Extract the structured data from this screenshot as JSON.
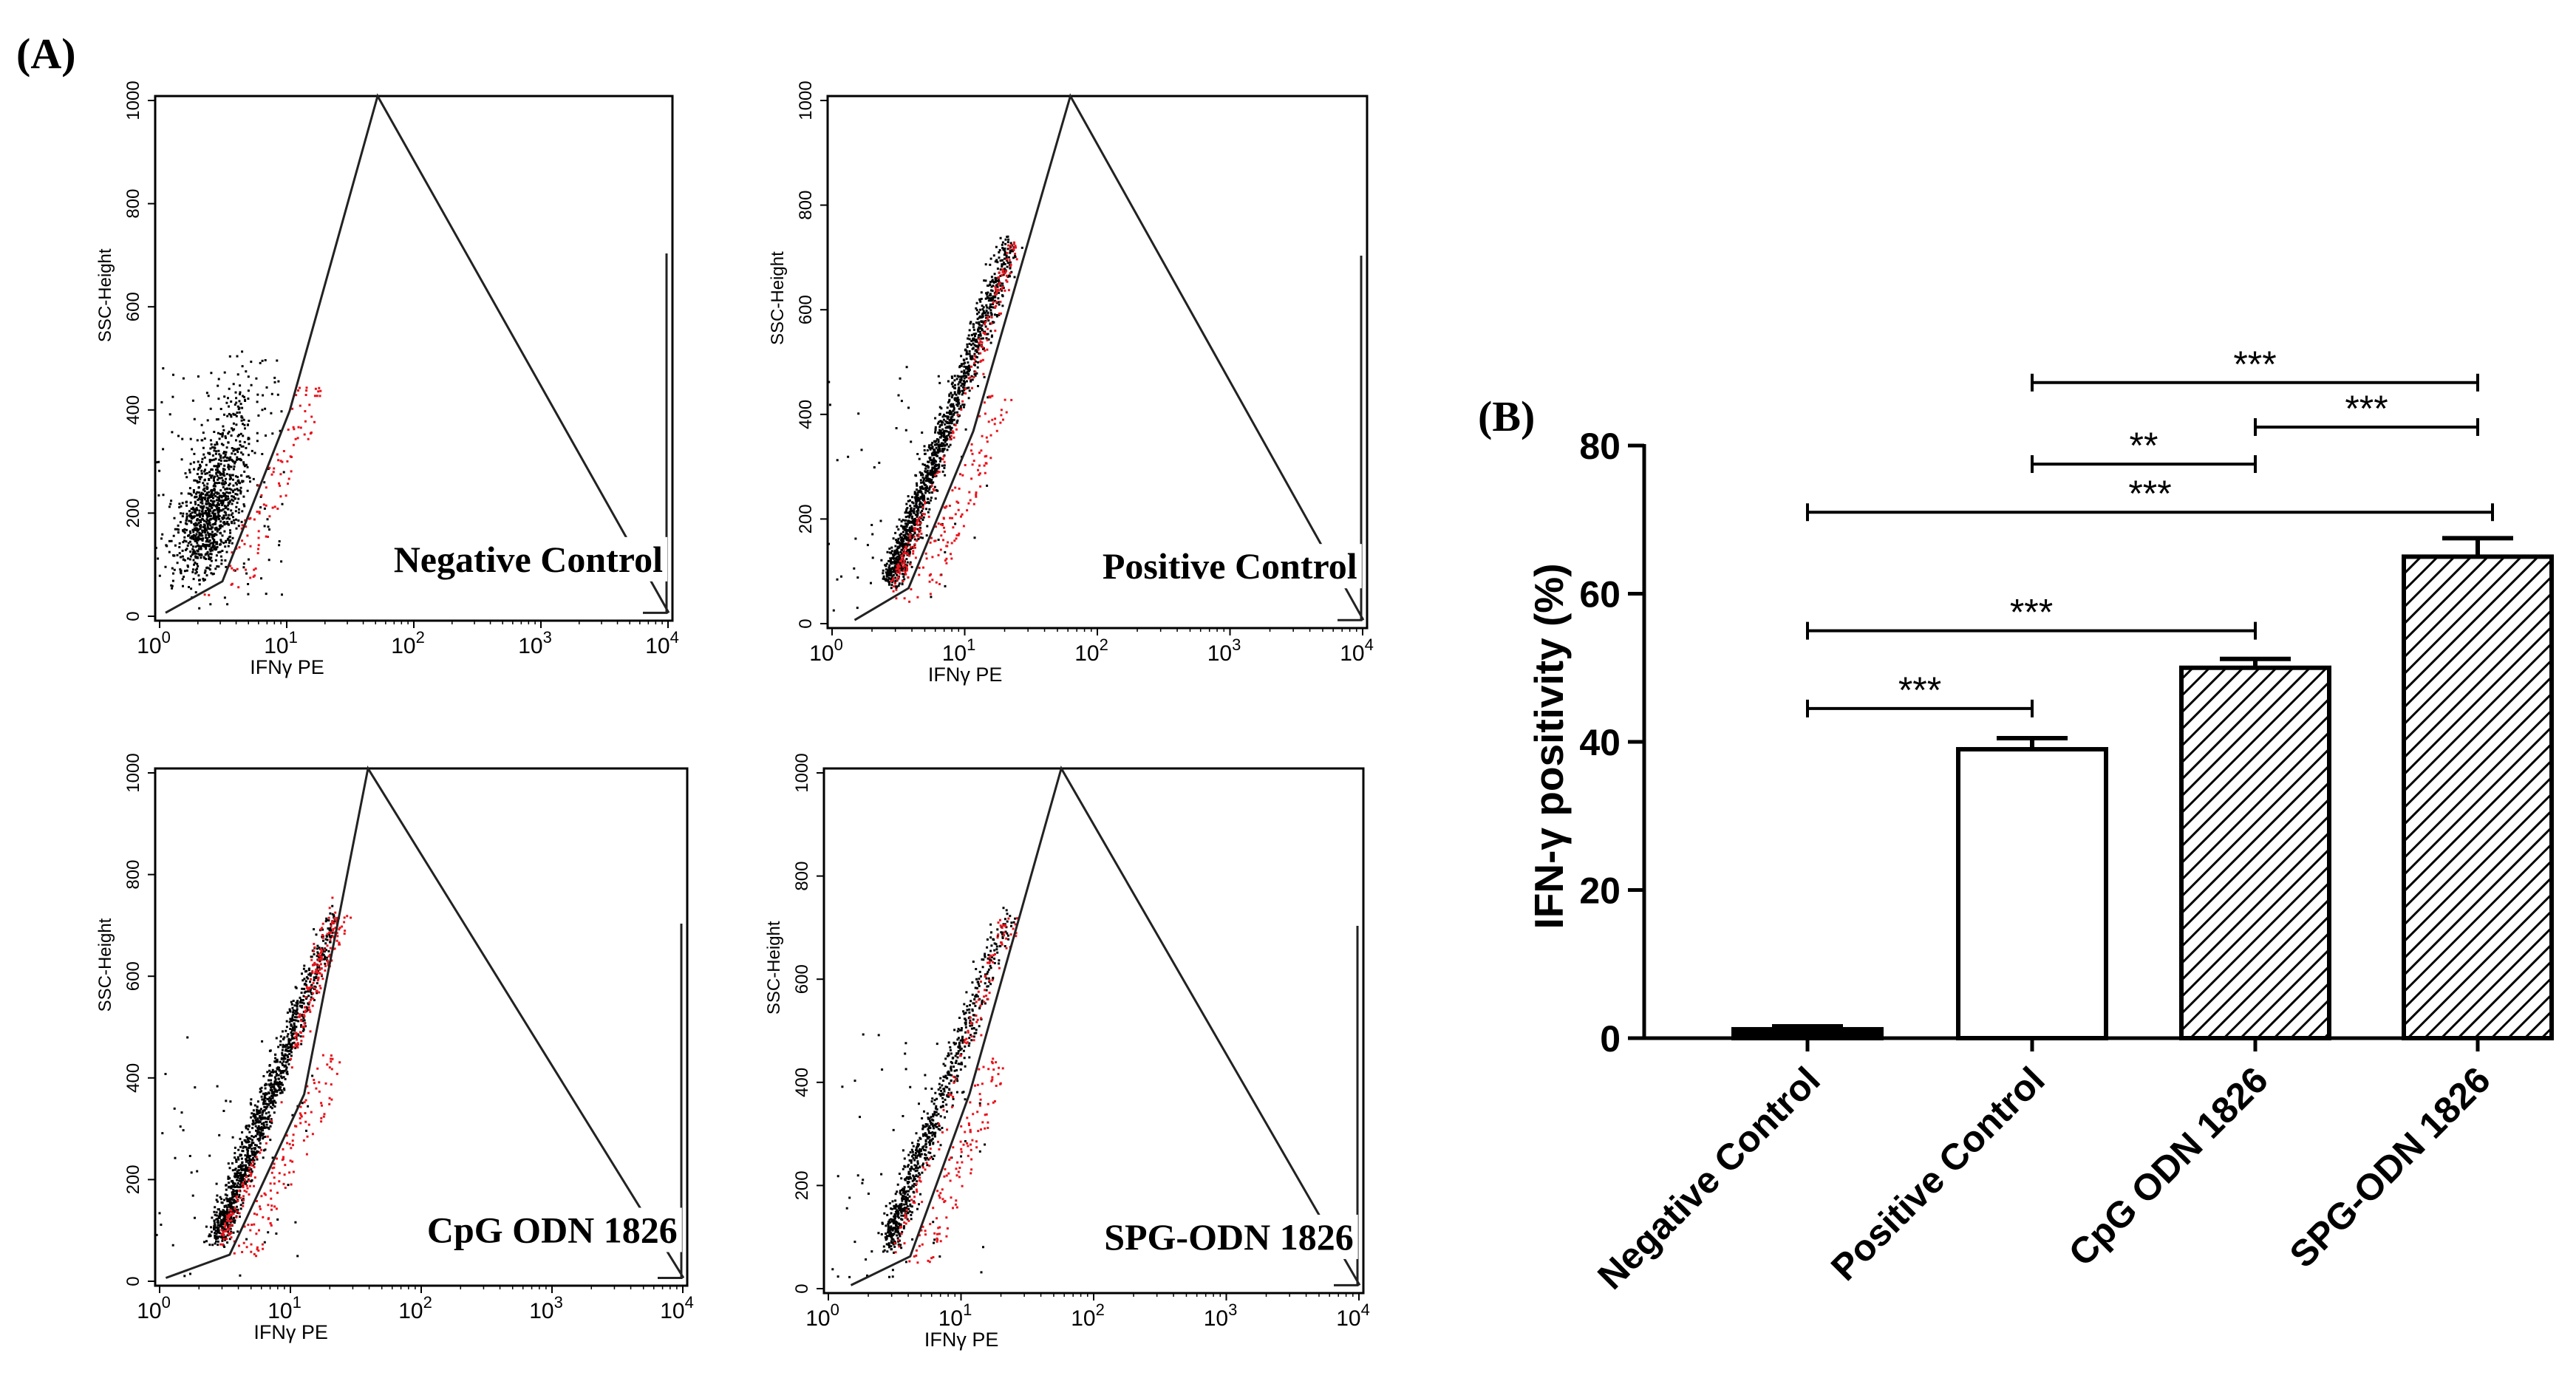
{
  "panel_labels": {
    "a": "(A)",
    "b": "(B)"
  },
  "flow_plots": {
    "ylabel": "SSC-Height",
    "xlabel": "IFNγ PE",
    "y_ticks": [
      "0",
      "200",
      "400",
      "600",
      "800",
      "1000"
    ],
    "x_base": "10",
    "x_exponents": [
      "0",
      "1",
      "2",
      "3",
      "4"
    ],
    "panels": [
      {
        "label": "Negative Control"
      },
      {
        "label": "Positive Control"
      },
      {
        "label": "CpG ODN 1826"
      },
      {
        "label": "SPG-ODN 1826"
      }
    ],
    "colors": {
      "gated_out": "#000000",
      "positive": "#e8141c"
    }
  },
  "chart_data": {
    "type": "bar",
    "categories": [
      "Negative Control",
      "Positive Control",
      "CpG ODN 1826",
      "SPG-ODN 1826"
    ],
    "values": [
      1.2,
      39,
      50,
      65
    ],
    "errors": [
      0.4,
      1.5,
      1.2,
      2.5
    ],
    "fills": [
      "solid",
      "white",
      "hatch",
      "hatch"
    ],
    "ylabel": "IFN-γ positivity (%)",
    "ylim": [
      0,
      80
    ],
    "y_ticks": [
      "0",
      "20",
      "40",
      "60",
      "80"
    ],
    "significance": [
      {
        "from": 0,
        "to": 1,
        "label": "***",
        "y": 44.5
      },
      {
        "from": 0,
        "to": 2,
        "label": "***",
        "y": 55
      },
      {
        "from": 0,
        "to": 3,
        "label": "***",
        "y": 71
      },
      {
        "from": 1,
        "to": 2,
        "label": "**",
        "y": 77.5
      },
      {
        "from": 2,
        "to": 3,
        "label": "***",
        "y": 82.5
      },
      {
        "from": 1,
        "to": 3,
        "label": "***",
        "y": 88.5
      }
    ]
  }
}
